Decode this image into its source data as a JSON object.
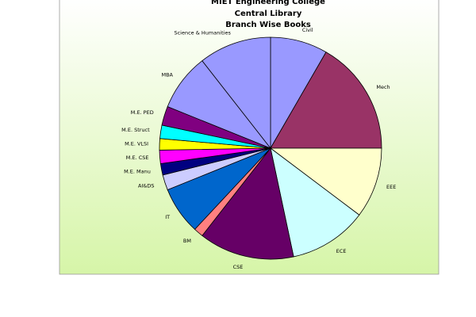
{
  "chart_data": {
    "type": "pie",
    "title": [
      "MIET Engineering College",
      "Central Library",
      "Branch Wise Books"
    ],
    "categories": [
      "Civil",
      "Mech",
      "EEE",
      "ECE",
      "CSE",
      "BM",
      "IT",
      "AI&DS",
      "M.E. Manu",
      "M.E. CSE",
      "M.E. VLSI",
      "M.E. Struct",
      "M.E. PED",
      "MBA",
      "Science & Humanities"
    ],
    "values": [
      30,
      60,
      37,
      41,
      50,
      5,
      25,
      8,
      6,
      7,
      6,
      7,
      10,
      30,
      38
    ],
    "colors": [
      "#9999ff",
      "#993366",
      "#ffffcc",
      "#ccffff",
      "#660066",
      "#ff8080",
      "#0066cc",
      "#ccccff",
      "#000080",
      "#ff00ff",
      "#ffff00",
      "#00ffff",
      "#800080",
      "#9999ff",
      "#9999ff"
    ]
  }
}
